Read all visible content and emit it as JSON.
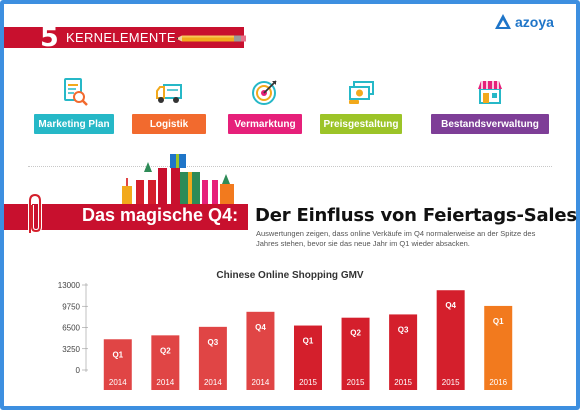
{
  "header": {
    "number": "5",
    "title": "KERNELEMENTE"
  },
  "logo": {
    "text": "azoya"
  },
  "elements": [
    {
      "label": "Marketing Plan",
      "color": "#26b8c7",
      "icon": "document-magnifier-icon"
    },
    {
      "label": "Logistik",
      "color": "#f26a2e",
      "icon": "delivery-truck-icon"
    },
    {
      "label": "Vermarktung",
      "color": "#e6207a",
      "icon": "target-icon"
    },
    {
      "label": "Preisgestaltung",
      "color": "#9cc428",
      "icon": "money-bills-icon"
    },
    {
      "label": "Bestandsverwaltung",
      "color": "#7e3e97",
      "icon": "store-icon"
    }
  ],
  "section": {
    "title_red": "Das magische Q4:",
    "title_black": "Der Einfluss von Feiertags-Sales",
    "subtitle": "Auswertungen zeigen, dass online Verkäufe im Q4 normalerweise an der Spitze des Jahres stehen, bevor sie das neue Jahr im Q1 wieder absacken."
  },
  "chart_data": {
    "type": "bar",
    "title": "Chinese Online Shopping GMV",
    "xlabel": "",
    "ylabel": "",
    "ylim": [
      0,
      13000
    ],
    "yticks": [
      0,
      3250,
      6500,
      9750,
      13000
    ],
    "grid": false,
    "categories": [
      "2014",
      "2014",
      "2014",
      "2014",
      "2015",
      "2015",
      "2015",
      "2015",
      "2016"
    ],
    "quarters": [
      "Q1",
      "Q2",
      "Q3",
      "Q4",
      "Q1",
      "Q2",
      "Q3",
      "Q4",
      "Q1"
    ],
    "values": [
      4700,
      5300,
      6600,
      8900,
      6800,
      8000,
      8500,
      12200,
      9800
    ],
    "colors": [
      "#e04545",
      "#e04545",
      "#e04545",
      "#e04545",
      "#d41f2c",
      "#d41f2c",
      "#d41f2c",
      "#d41f2c",
      "#f27a1e"
    ]
  }
}
